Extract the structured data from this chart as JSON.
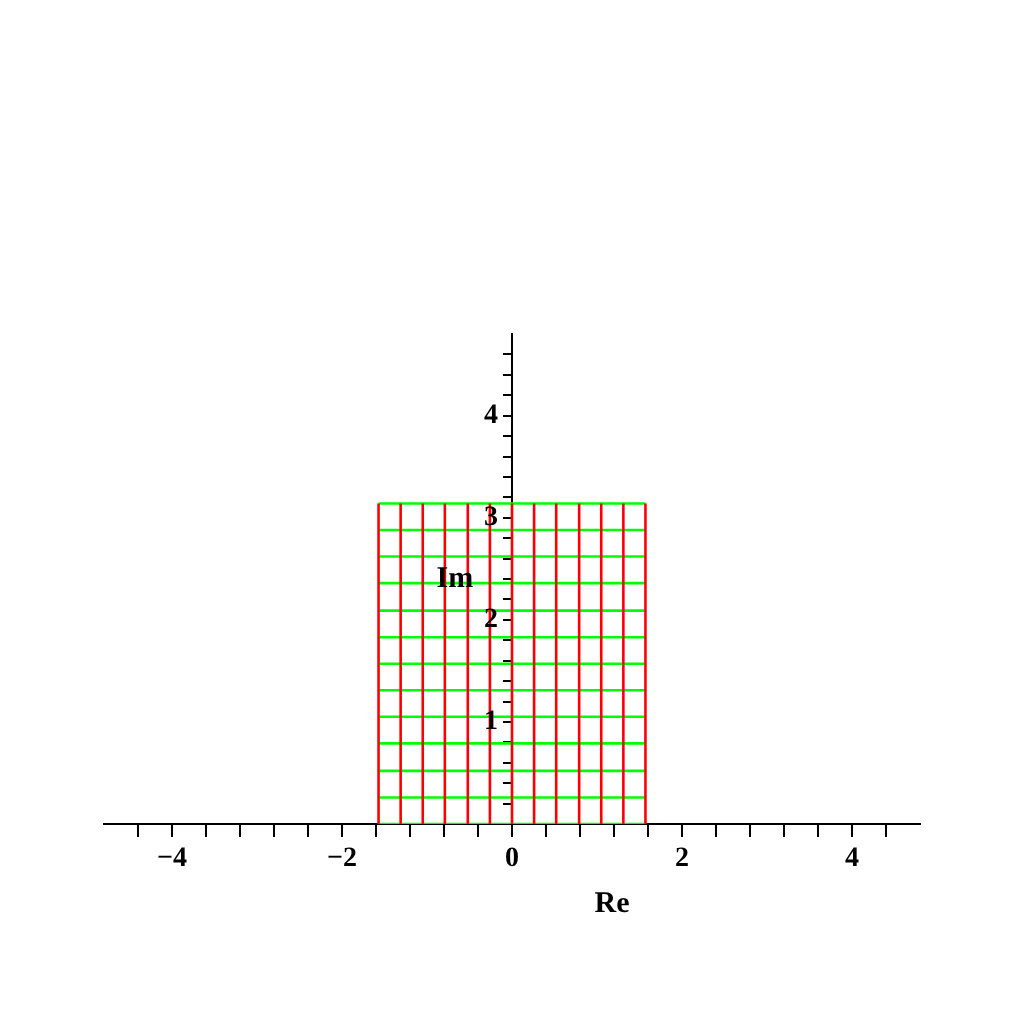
{
  "chart_data": {
    "type": "line",
    "xlabel": "Re",
    "ylabel": "Im",
    "xlim": [
      -4.8,
      4.8
    ],
    "ylim": [
      0,
      4.8
    ],
    "xticks": [
      {
        "value": -4.4,
        "label": null
      },
      -4,
      {
        "value": -3.6,
        "label": null
      },
      {
        "value": -3.2,
        "label": null
      },
      {
        "value": -2.8,
        "label": null
      },
      {
        "value": -2.4,
        "label": null
      },
      -2,
      {
        "value": -1.6,
        "label": null
      },
      {
        "value": -1.2,
        "label": null
      },
      {
        "value": -0.8,
        "label": null
      },
      {
        "value": -0.4,
        "label": null
      },
      0,
      {
        "value": 0.4,
        "label": null
      },
      {
        "value": 0.8,
        "label": null
      },
      {
        "value": 1.2,
        "label": null
      },
      {
        "value": 1.6,
        "label": null
      },
      2,
      {
        "value": 2.4,
        "label": null
      },
      {
        "value": 2.8,
        "label": null
      },
      {
        "value": 3.2,
        "label": null
      },
      {
        "value": 3.6,
        "label": null
      },
      4,
      {
        "value": 4.4,
        "label": null
      }
    ],
    "yticks": [
      {
        "value": 0,
        "label": null
      },
      {
        "value": 0.2,
        "label": null
      },
      {
        "value": 0.4,
        "label": null
      },
      {
        "value": 0.6,
        "label": null
      },
      {
        "value": 0.8,
        "label": null
      },
      1,
      {
        "value": 1.2,
        "label": null
      },
      {
        "value": 1.4,
        "label": null
      },
      {
        "value": 1.6,
        "label": null
      },
      {
        "value": 1.8,
        "label": null
      },
      2,
      {
        "value": 2.2,
        "label": null
      },
      {
        "value": 2.4,
        "label": null
      },
      {
        "value": 2.6,
        "label": null
      },
      {
        "value": 2.8,
        "label": null
      },
      3,
      {
        "value": 3.2,
        "label": null
      },
      {
        "value": 3.4,
        "label": null
      },
      {
        "value": 3.6,
        "label": null
      },
      {
        "value": 3.8,
        "label": null
      },
      4,
      {
        "value": 4.2,
        "label": null
      },
      {
        "value": 4.4,
        "label": null
      },
      {
        "value": 4.6,
        "label": null
      }
    ],
    "marker": "none",
    "grid": false,
    "legend": false,
    "series": [
      {
        "color": "#ff0000",
        "x": [
          -1.57,
          -1.57
        ],
        "values": [
          0,
          3.14
        ]
      },
      {
        "color": "#ff0000",
        "x": [
          -1.31,
          -1.31
        ],
        "values": [
          0,
          3.14
        ]
      },
      {
        "color": "#ff0000",
        "x": [
          -1.05,
          -1.05
        ],
        "values": [
          0,
          3.14
        ]
      },
      {
        "color": "#ff0000",
        "x": [
          -0.79,
          -0.79
        ],
        "values": [
          0,
          3.14
        ]
      },
      {
        "color": "#ff0000",
        "x": [
          -0.52,
          -0.52
        ],
        "values": [
          0,
          3.14
        ]
      },
      {
        "color": "#ff0000",
        "x": [
          -0.26,
          -0.26
        ],
        "values": [
          0,
          3.14
        ]
      },
      {
        "color": "#ff0000",
        "x": [
          0,
          0
        ],
        "values": [
          0,
          3.14
        ]
      },
      {
        "color": "#ff0000",
        "x": [
          0.26,
          0.26
        ],
        "values": [
          0,
          3.14
        ]
      },
      {
        "color": "#ff0000",
        "x": [
          0.52,
          0.52
        ],
        "values": [
          0,
          3.14
        ]
      },
      {
        "color": "#ff0000",
        "x": [
          0.79,
          0.79
        ],
        "values": [
          0,
          3.14
        ]
      },
      {
        "color": "#ff0000",
        "x": [
          1.05,
          1.05
        ],
        "values": [
          0,
          3.14
        ]
      },
      {
        "color": "#ff0000",
        "x": [
          1.31,
          1.31
        ],
        "values": [
          0,
          3.14
        ]
      },
      {
        "color": "#ff0000",
        "x": [
          1.57,
          1.57
        ],
        "values": [
          0,
          3.14
        ]
      },
      {
        "color": "#00ff00",
        "x": [
          -1.57,
          1.57
        ],
        "values": [
          0,
          0
        ]
      },
      {
        "color": "#00ff00",
        "x": [
          -1.57,
          1.57
        ],
        "values": [
          0.26,
          0.26
        ]
      },
      {
        "color": "#00ff00",
        "x": [
          -1.57,
          1.57
        ],
        "values": [
          0.52,
          0.52
        ]
      },
      {
        "color": "#00ff00",
        "x": [
          -1.57,
          1.57
        ],
        "values": [
          0.79,
          0.79
        ]
      },
      {
        "color": "#00ff00",
        "x": [
          -1.57,
          1.57
        ],
        "values": [
          1.05,
          1.05
        ]
      },
      {
        "color": "#00ff00",
        "x": [
          -1.57,
          1.57
        ],
        "values": [
          1.31,
          1.31
        ]
      },
      {
        "color": "#00ff00",
        "x": [
          -1.57,
          1.57
        ],
        "values": [
          1.57,
          1.57
        ]
      },
      {
        "color": "#00ff00",
        "x": [
          -1.57,
          1.57
        ],
        "values": [
          1.83,
          1.83
        ]
      },
      {
        "color": "#00ff00",
        "x": [
          -1.57,
          1.57
        ],
        "values": [
          2.09,
          2.09
        ]
      },
      {
        "color": "#00ff00",
        "x": [
          -1.57,
          1.57
        ],
        "values": [
          2.36,
          2.36
        ]
      },
      {
        "color": "#00ff00",
        "x": [
          -1.57,
          1.57
        ],
        "values": [
          2.62,
          2.62
        ]
      },
      {
        "color": "#00ff00",
        "x": [
          -1.57,
          1.57
        ],
        "values": [
          2.88,
          2.88
        ]
      },
      {
        "color": "#00ff00",
        "x": [
          -1.57,
          1.57
        ],
        "values": [
          3.14,
          3.14
        ]
      }
    ]
  }
}
